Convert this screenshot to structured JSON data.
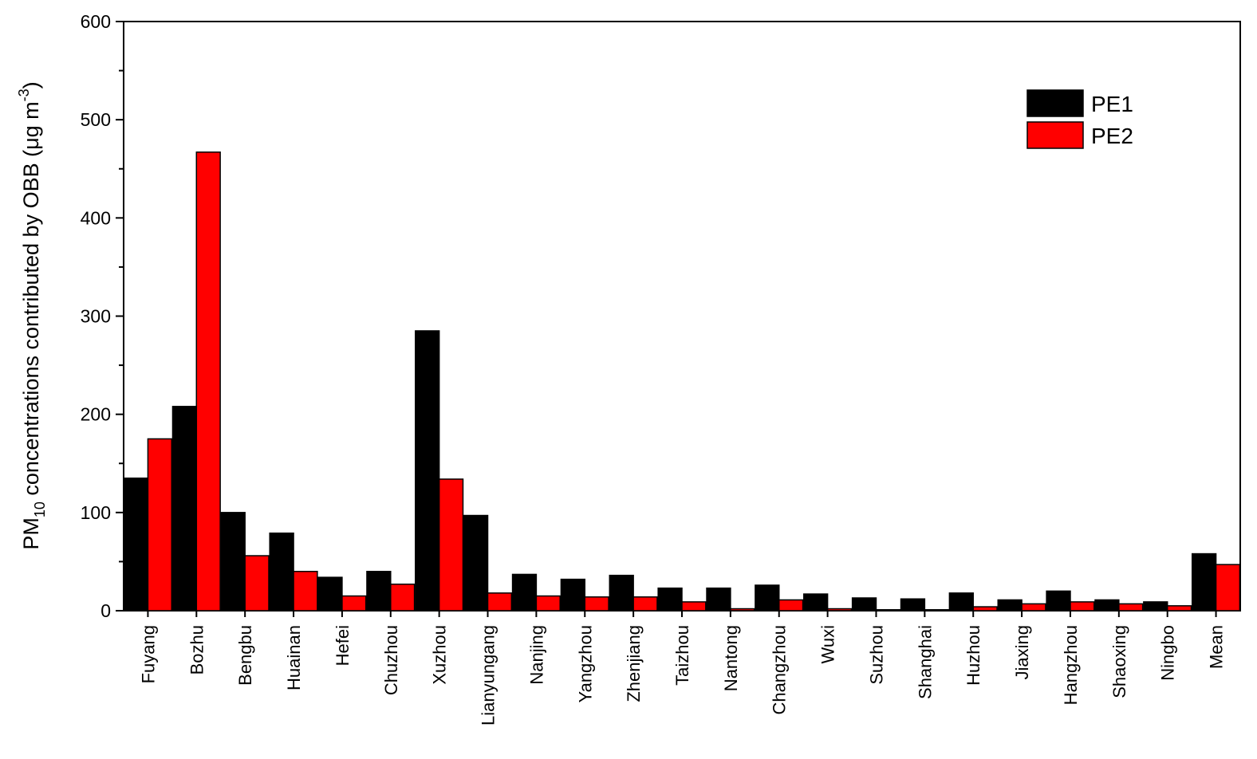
{
  "chart_data": {
    "type": "bar",
    "ylabel_parts": [
      "PM",
      "10",
      " concentrations contributed by OBB (μg m",
      "-3",
      ")"
    ],
    "categories": [
      "Fuyang",
      "Bozhu",
      "Bengbu",
      "Huainan",
      "Hefei",
      "Chuzhou",
      "Xuzhou",
      "Lianyungang",
      "Nanjing",
      "Yangzhou",
      "Zhenjiang",
      "Taizhou",
      "Nantong",
      "Changzhou",
      "Wuxi",
      "Suzhou",
      "Shanghai",
      "Huzhou",
      "Jiaxing",
      "Hangzhou",
      "Shaoxing",
      "Ningbo",
      "Mean"
    ],
    "series": [
      {
        "name": "PE1",
        "color": "#000000",
        "values": [
          135,
          208,
          100,
          79,
          34,
          40,
          285,
          97,
          37,
          32,
          36,
          23,
          23,
          26,
          17,
          13,
          12,
          18,
          11,
          20,
          11,
          9,
          58
        ]
      },
      {
        "name": "PE2",
        "color": "#ff0000",
        "values": [
          175,
          467,
          56,
          40,
          15,
          27,
          134,
          18,
          15,
          14,
          14,
          9,
          2,
          11,
          2,
          1,
          1,
          4,
          7,
          9,
          7,
          5,
          47
        ]
      }
    ],
    "ylim": [
      0,
      600
    ],
    "yticks": [
      0,
      100,
      200,
      300,
      400,
      500,
      600
    ],
    "legend": "upper-right"
  }
}
